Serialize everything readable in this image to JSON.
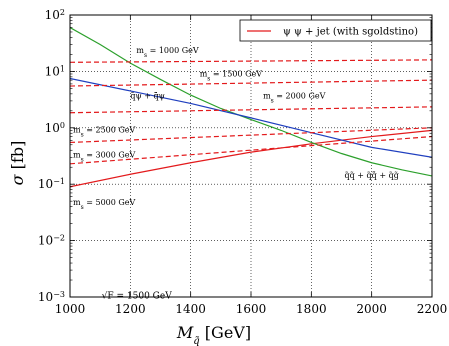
{
  "chart_data": {
    "type": "line",
    "xlabel": "M_q̃ [GeV]",
    "ylabel": "σ [fb]",
    "x_ticks": [
      1000,
      1200,
      1400,
      1600,
      1800,
      2000,
      2200
    ],
    "y_ticks": [
      {
        "value": -3,
        "label": "10",
        "exp": "−3"
      },
      {
        "value": -2,
        "label": "10",
        "exp": "−2"
      },
      {
        "value": -1,
        "label": "10",
        "exp": "−1"
      },
      {
        "value": 0,
        "label": "10",
        "exp": "0"
      },
      {
        "value": 1,
        "label": "10",
        "exp": "1"
      },
      {
        "value": 2,
        "label": "10",
        "exp": "2"
      }
    ],
    "xlim": [
      1000,
      2200
    ],
    "ylim_log10": [
      -3,
      2
    ],
    "y_scale": "log",
    "grid": true,
    "legend_position": "top-right",
    "legend": [
      {
        "label": "ψ ψ + jet (with sgoldstino)",
        "color": "#e31a1c"
      }
    ],
    "series": [
      {
        "name": "ψ ψ + jet (with sgoldstino)",
        "color": "#e31a1c",
        "style": "solid",
        "x": [
          1000,
          1200,
          1400,
          1600,
          1800,
          2000,
          2200
        ],
        "y": [
          0.09,
          0.15,
          0.24,
          0.37,
          0.52,
          0.7,
          0.9
        ]
      },
      {
        "name": "q̃q̃ + q̃q̄̃ + q̃g̃",
        "color": "#2ca02c",
        "style": "solid",
        "x": [
          1000,
          1100,
          1200,
          1300,
          1400,
          1500,
          1600,
          1700,
          1800,
          1900,
          2000,
          2100,
          2200
        ],
        "y": [
          60,
          30,
          14,
          7.2,
          3.8,
          2.2,
          1.4,
          0.9,
          0.55,
          0.35,
          0.24,
          0.18,
          0.14
        ]
      },
      {
        "name": "q̃ψ + q̄̃ψ",
        "color": "#1f3fbf",
        "style": "solid",
        "x": [
          1000,
          1200,
          1400,
          1600,
          1800,
          2000,
          2200
        ],
        "y": [
          7.5,
          4.5,
          2.7,
          1.5,
          0.82,
          0.45,
          0.3
        ]
      },
      {
        "name": "m_s = 1000 GeV",
        "color": "#e31a1c",
        "style": "dashed",
        "x": [
          1000,
          2200
        ],
        "y": [
          14.5,
          16
        ]
      },
      {
        "name": "m_s = 1500 GeV",
        "color": "#e31a1c",
        "style": "dashed",
        "x": [
          1000,
          2200
        ],
        "y": [
          5.5,
          7
        ]
      },
      {
        "name": "m_s = 2000 GeV",
        "color": "#e31a1c",
        "style": "dashed",
        "x": [
          1000,
          2200
        ],
        "y": [
          1.85,
          2.35
        ]
      },
      {
        "name": "m_s = 2500 GeV",
        "color": "#e31a1c",
        "style": "dashed",
        "x": [
          1000,
          2200
        ],
        "y": [
          0.55,
          1.0
        ]
      },
      {
        "name": "m_s = 3000 GeV",
        "color": "#e31a1c",
        "style": "dashed",
        "x": [
          1000,
          2200
        ],
        "y": [
          0.23,
          0.7
        ]
      }
    ],
    "annotations": {
      "ms1000": {
        "text": "m_s = 1000 GeV",
        "x": 1220,
        "y": 21
      },
      "ms1500": {
        "text": "m_s = 1500 GeV",
        "x": 1430,
        "y": 8.2
      },
      "qpsi": {
        "text": "q̃ψ + q̄̃ψ",
        "x": 1200,
        "y": 3.3
      },
      "ms2000": {
        "text": "m_s = 2000 GeV",
        "x": 1640,
        "y": 3.3
      },
      "ms2500": {
        "text": "m_s = 2500 GeV",
        "x": 1010,
        "y": 0.82
      },
      "ms3000": {
        "text": "m_s = 3000 GeV",
        "x": 1010,
        "y": 0.3
      },
      "ms5000": {
        "text": "m_s = 5000 GeV",
        "x": 1010,
        "y": 0.043
      },
      "sqq": {
        "text": "q̃q̃ + q̃q̄̃ + q̃g̃",
        "x": 1910,
        "y": 0.13
      },
      "sqrtF": {
        "text": "√F = 1500 GeV",
        "x": 1105,
        "y": 0.00095
      }
    }
  }
}
